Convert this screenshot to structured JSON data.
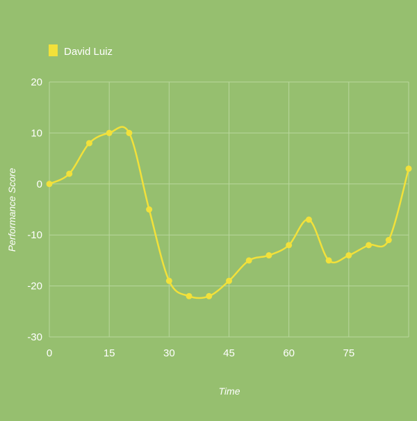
{
  "chart_data": {
    "type": "line",
    "title": "",
    "xlabel": "Time",
    "ylabel": "Performance Score",
    "xlim": [
      0,
      90
    ],
    "ylim": [
      -30,
      20
    ],
    "x_ticks": [
      0,
      15,
      30,
      45,
      60,
      75
    ],
    "y_ticks": [
      -30,
      -20,
      -10,
      0,
      10,
      20
    ],
    "grid": true,
    "legend_position": "top-left",
    "series": [
      {
        "name": "David Luiz",
        "color": "#f2e13a",
        "x": [
          0,
          5,
          10,
          15,
          20,
          25,
          30,
          35,
          40,
          45,
          50,
          55,
          60,
          65,
          70,
          75,
          80,
          85,
          90
        ],
        "values": [
          0,
          2,
          8,
          10,
          10,
          -5,
          -19,
          -22,
          -22,
          -19,
          -15,
          -14,
          -12,
          -7,
          -15,
          -14,
          -12,
          -11,
          3
        ]
      }
    ]
  }
}
